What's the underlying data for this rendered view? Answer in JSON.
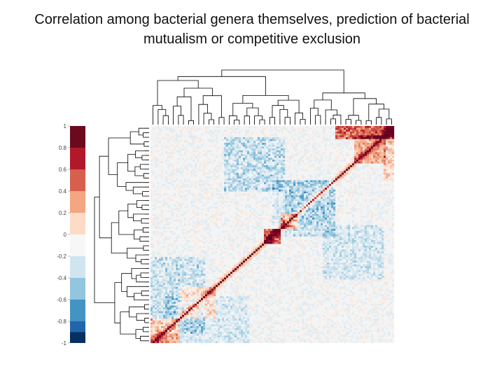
{
  "slide": {
    "title_line1": "Correlation among bacterial genera themselves, prediction of bacterial",
    "title_line2": "mutualism or competitive exclusion"
  },
  "chart_data": {
    "type": "heatmap",
    "title": "Correlation among bacterial genera themselves, prediction of bacterial mutualism or competitive exclusion",
    "description_kind": "clustered correlation matrix with row and column dendrograms",
    "colorbar": {
      "range": [
        -1,
        1
      ],
      "ticks": [
        1,
        0.8,
        0.6,
        0.4,
        0.2,
        0,
        -0.2,
        -0.4,
        -0.6,
        -0.8,
        -1
      ],
      "tick_labels": [
        "1",
        "0.8",
        "0.6",
        "0.4",
        "0.2",
        "0",
        "-0.2",
        "-0.4",
        "-0.6",
        "-0.8",
        "-1"
      ],
      "bins": [
        {
          "from": 0.8,
          "to": 1.0,
          "color": "#6b0a1f"
        },
        {
          "from": 0.6,
          "to": 0.8,
          "color": "#b2182b"
        },
        {
          "from": 0.4,
          "to": 0.6,
          "color": "#d6604d"
        },
        {
          "from": 0.2,
          "to": 0.4,
          "color": "#f4a582"
        },
        {
          "from": 0.0,
          "to": 0.2,
          "color": "#fddbc7"
        },
        {
          "from": -0.2,
          "to": 0.0,
          "color": "#f7f7f7"
        },
        {
          "from": -0.4,
          "to": -0.2,
          "color": "#d1e5f0"
        },
        {
          "from": -0.6,
          "to": -0.4,
          "color": "#92c5de"
        },
        {
          "from": -0.8,
          "to": -0.6,
          "color": "#4393c3"
        },
        {
          "from": -1.0,
          "to": -0.8,
          "color": "#2166ac"
        },
        {
          "from": -1.0,
          "to": -0.9,
          "color": "#053061"
        }
      ]
    },
    "diagonal_value": 1,
    "strong_positive_clusters": [
      {
        "name": "block-a",
        "range": [
          0.0,
          0.12
        ],
        "mean_r": 0.55
      },
      {
        "name": "block-b",
        "range": [
          0.12,
          0.26
        ],
        "mean_r": 0.35
      },
      {
        "name": "block-c",
        "range": [
          0.46,
          0.53
        ],
        "mean_r": 0.85
      },
      {
        "name": "block-d",
        "range": [
          0.53,
          0.6
        ],
        "mean_r": 0.7
      },
      {
        "name": "block-e",
        "range": [
          0.83,
          0.96
        ],
        "mean_r": 0.45
      },
      {
        "name": "block-f",
        "range": [
          0.96,
          1.0
        ],
        "mean_r": 0.9
      }
    ],
    "negative_regions": [
      {
        "name": "neg-1",
        "rows": [
          0.05,
          0.3
        ],
        "cols": [
          0.3,
          0.55
        ],
        "mean_r": -0.35
      },
      {
        "name": "neg-2",
        "rows": [
          0.25,
          0.5
        ],
        "cols": [
          0.55,
          0.75
        ],
        "mean_r": -0.3
      },
      {
        "name": "neg-3",
        "rows": [
          0.6,
          0.95
        ],
        "cols": [
          0.0,
          0.22
        ],
        "mean_r": -0.3
      }
    ]
  },
  "colors": {
    "background": "#ffffff",
    "neutral": "#f4f4f4",
    "dendrogram": "#000000"
  }
}
